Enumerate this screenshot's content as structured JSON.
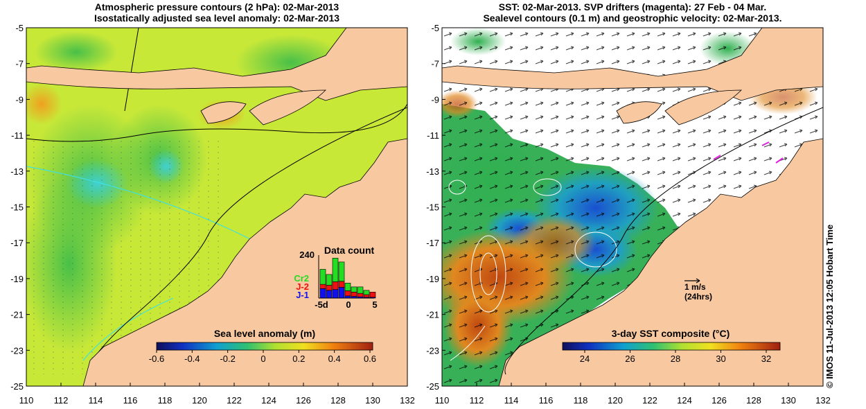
{
  "left_panel": {
    "title_line1": "Atmospheric pressure contours (2 hPa): 02-Mar-2013",
    "title_line2": "Isostatically adjusted sea level anomaly: 02-Mar-2013",
    "colorbar_label": "Sea level anomaly (m)",
    "colorbar_ticks": [
      "-0.6",
      "-0.4",
      "-0.2",
      "0",
      "0.2",
      "0.4",
      "0.6"
    ],
    "inset": {
      "title": "Data count",
      "ymax_label": "240",
      "legend": [
        {
          "label": "Cr2",
          "color": "#22dd22"
        },
        {
          "label": "J-2",
          "color": "#ee1111"
        },
        {
          "label": "J-1",
          "color": "#1111ee"
        }
      ],
      "xticks": [
        "-5d",
        "0",
        "5"
      ],
      "bars": [
        {
          "j1": 0.22,
          "j2": 0.1,
          "cr2": 0.35
        },
        {
          "j1": 0.18,
          "j2": 0.12,
          "cr2": 0.25
        },
        {
          "j1": 0.2,
          "j2": 0.18,
          "cr2": 0.55
        },
        {
          "j1": 0.25,
          "j2": 0.14,
          "cr2": 0.45
        },
        {
          "j1": 0.05,
          "j2": 0.12,
          "cr2": 0.18
        },
        {
          "j1": 0.04,
          "j2": 0.1,
          "cr2": 0.12
        },
        {
          "j1": 0.03,
          "j2": 0.08,
          "cr2": 0.15
        },
        {
          "j1": 0.02,
          "j2": 0.06,
          "cr2": 0.1
        },
        {
          "j1": 0.02,
          "j2": 0.12,
          "cr2": 0.0
        }
      ]
    }
  },
  "right_panel": {
    "title_line1": "SST: 02-Mar-2013. SVP drifters (magenta): 27 Feb - 04 Mar.",
    "title_line2": "Sealevel contours (0.1 m) and geostrophic velocity: 02-Mar-2013.",
    "colorbar_label": "3-day SST composite (°C)",
    "colorbar_ticks": [
      "24",
      "26",
      "28",
      "30",
      "32"
    ],
    "vector_key_line1": "1 m/s",
    "vector_key_line2": "(24hrs)"
  },
  "y_ticks": [
    "-5",
    "-7",
    "-9",
    "-11",
    "-13",
    "-15",
    "-17",
    "-19",
    "-21",
    "-23",
    "-25"
  ],
  "x_ticks": [
    "110",
    "112",
    "114",
    "116",
    "118",
    "120",
    "122",
    "124",
    "126",
    "128",
    "130",
    "132"
  ],
  "credit": "© IMOS 11-Jul-2013 12:05 Hobart Time",
  "colors": {
    "land": "#f8c8a0",
    "sea_base": "#c8e838",
    "sst_cold": "#1a6ad8",
    "sst_warm": "#c85010"
  }
}
